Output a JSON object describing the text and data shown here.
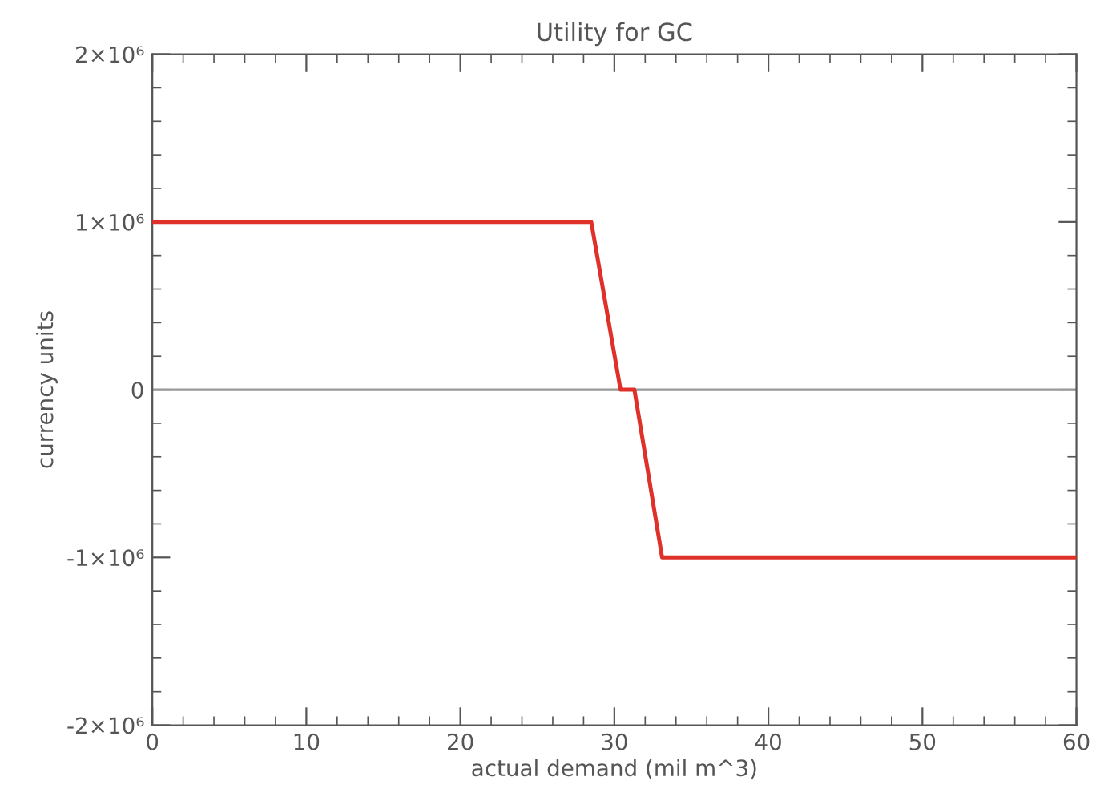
{
  "chart_data": {
    "type": "line",
    "title": "Utility for GC",
    "xlabel": "actual demand (mil m^3)",
    "ylabel": "currency units",
    "x": [
      0,
      28.5,
      30.4,
      31.3,
      33.1,
      60
    ],
    "series": [
      {
        "color": "#e0302a",
        "values": [
          1000000,
          1000000,
          0,
          0,
          -1000000,
          -1000000
        ]
      }
    ],
    "xlim": [
      0,
      60
    ],
    "xticks": [
      0,
      10,
      20,
      30,
      40,
      50,
      60
    ],
    "ylim": [
      -2000000,
      2000000
    ],
    "yticks": [
      {
        "value": -2000000,
        "label": "-2×10⁶"
      },
      {
        "value": -1000000,
        "label": "-1×10⁶"
      },
      0,
      {
        "value": 1000000,
        "label": "1×10⁶"
      },
      {
        "value": 2000000,
        "label": "2×10⁶"
      }
    ],
    "ref_lines": [
      {
        "axis": "y",
        "value": 0,
        "color": "#999999"
      }
    ],
    "grid": false,
    "marker": "none",
    "line_style": "solid"
  }
}
